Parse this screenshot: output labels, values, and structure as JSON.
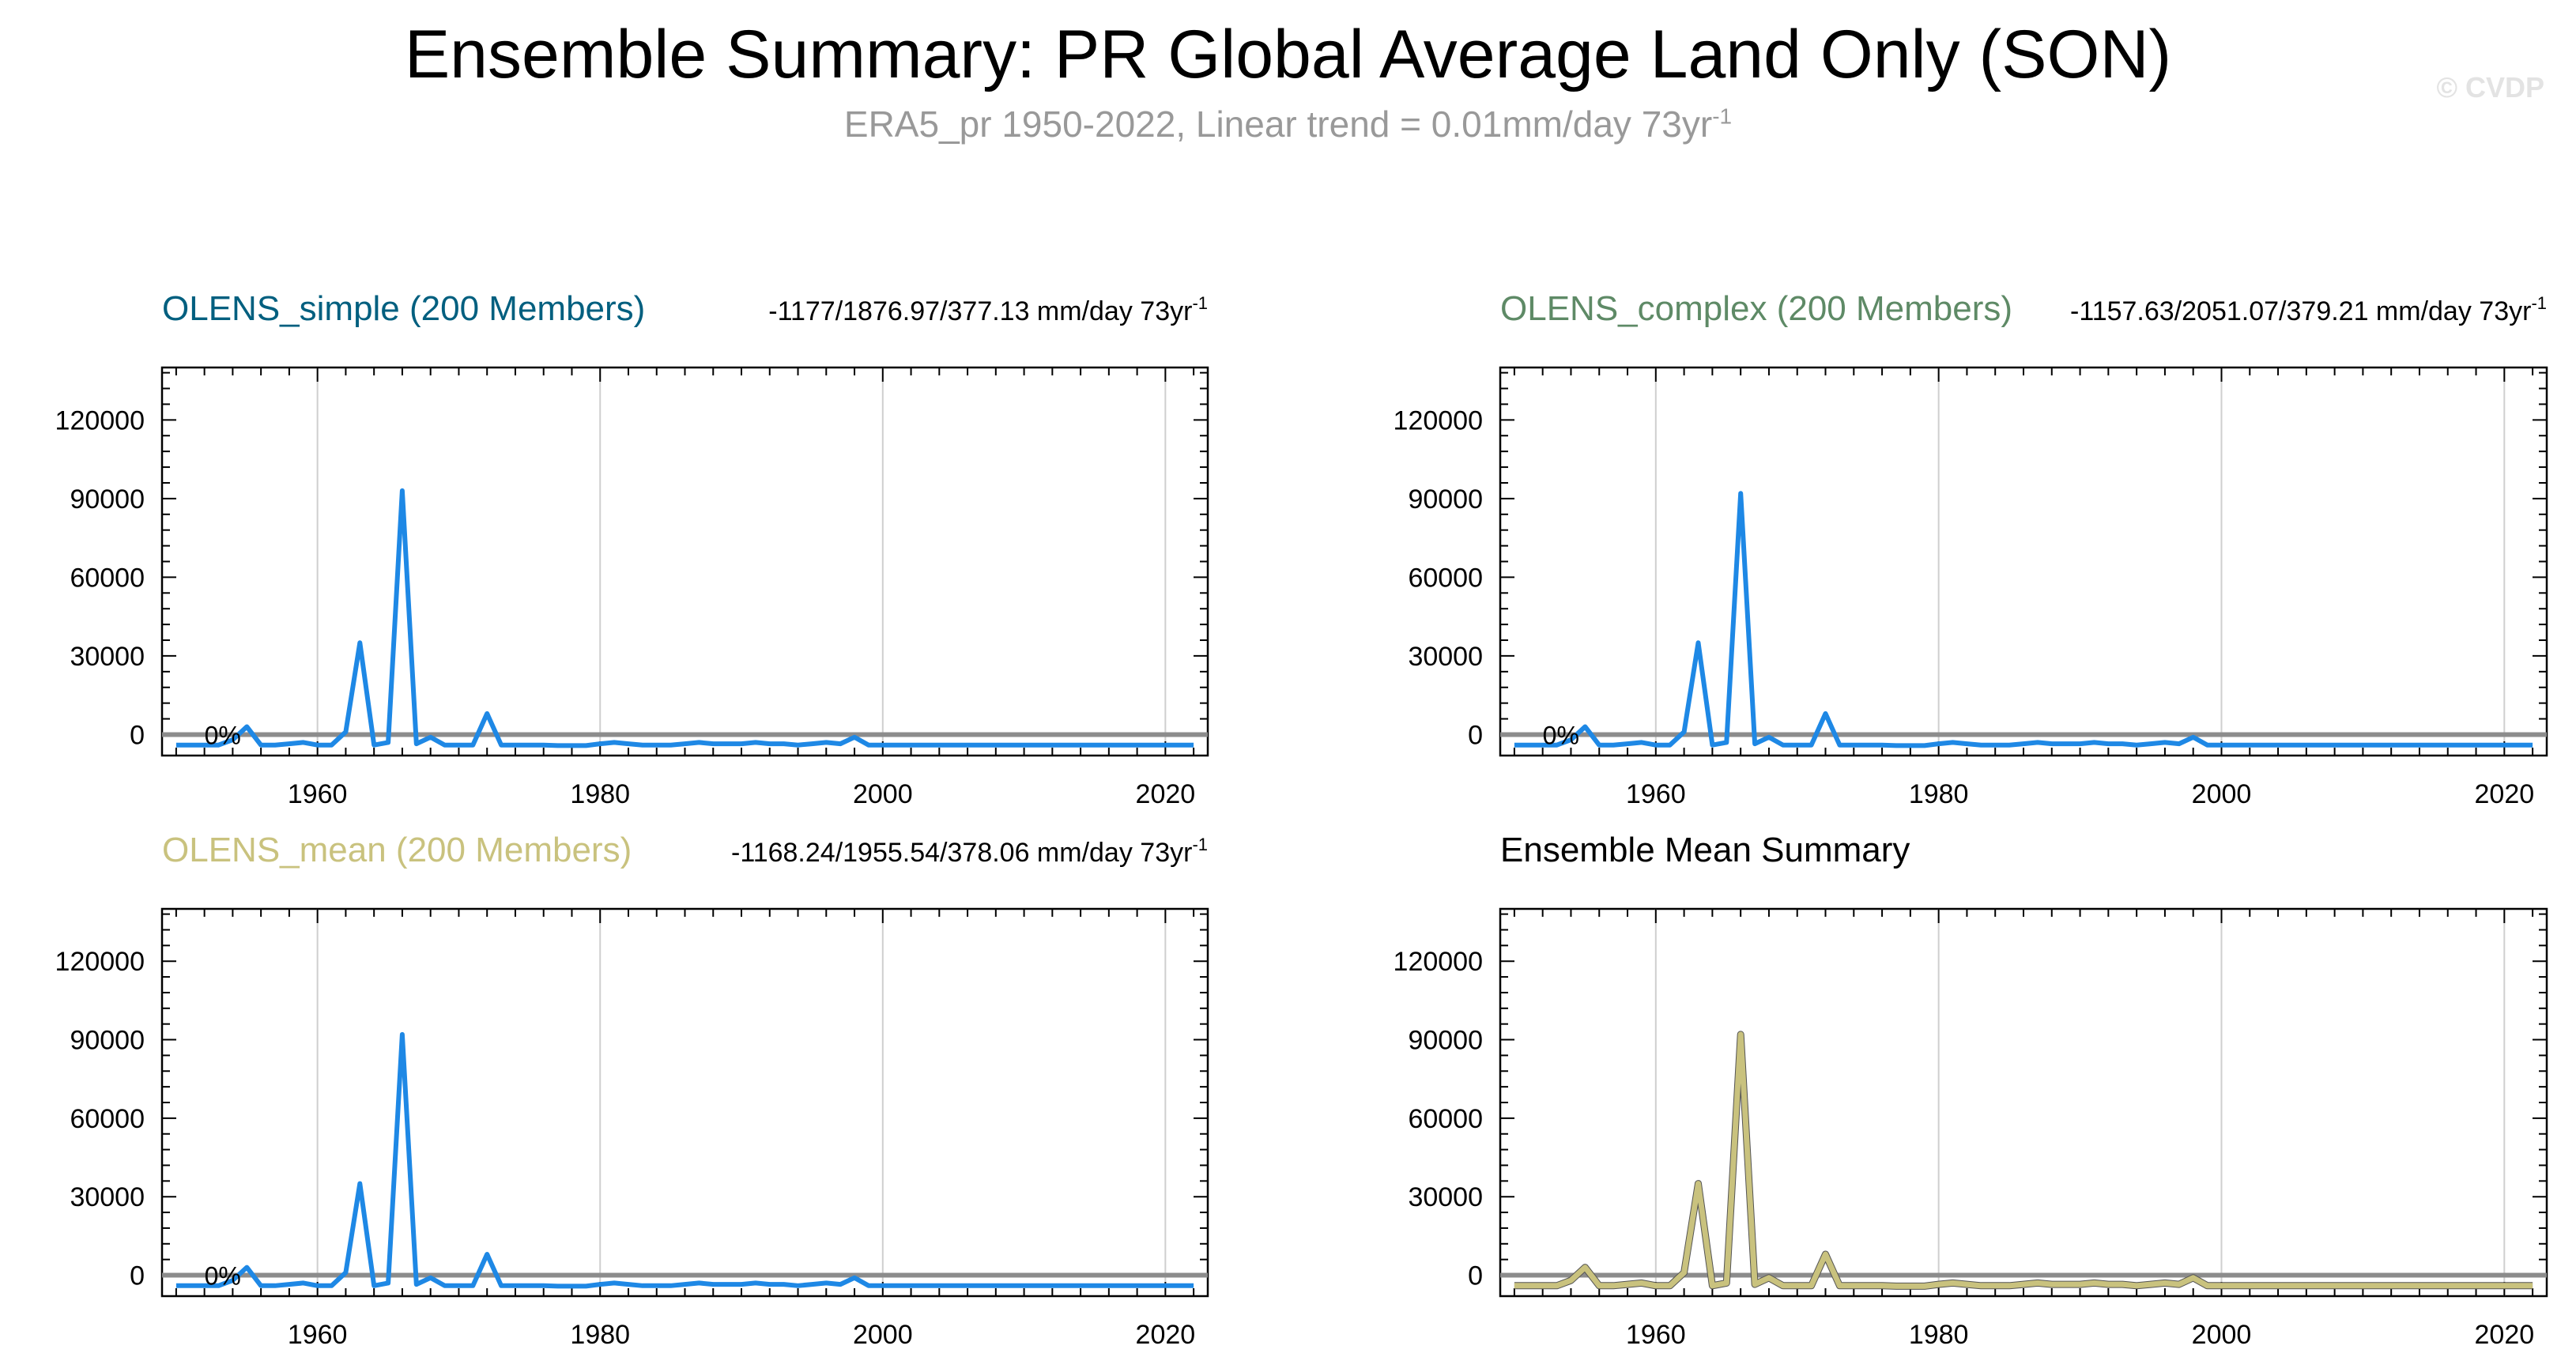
{
  "title": "Ensemble Summary: PR Global Average Land Only (SON)",
  "subtitle": {
    "text": "ERA5_pr 1950-2022, Linear trend = 0.01mm/day 73yr",
    "superscript": "-1"
  },
  "watermark": "© CVDP",
  "colors": {
    "simple": "#005f7f",
    "complex": "#5e8a66",
    "mean": "#c9c27e",
    "observed_line": "#1e88e5",
    "zero_line": "#8c8c8c"
  },
  "chart_data": [
    {
      "type": "line",
      "title": "OLENS_simple (200 Members)",
      "stats": "-1177/1876.97/377.13 mm/day 73yr",
      "stats_superscript": "-1",
      "percent_label": "0%",
      "xlim": [
        1949,
        2023
      ],
      "ylim": [
        -8000,
        140000
      ],
      "xticks": [
        1960,
        1980,
        2000,
        2020
      ],
      "yticks": [
        0,
        30000,
        60000,
        90000,
        120000
      ],
      "x": [
        1950,
        1951,
        1952,
        1953,
        1954,
        1955,
        1956,
        1957,
        1958,
        1959,
        1960,
        1961,
        1962,
        1963,
        1964,
        1965,
        1966,
        1967,
        1968,
        1969,
        1970,
        1971,
        1972,
        1973,
        1974,
        1975,
        1976,
        1977,
        1978,
        1979,
        1980,
        1981,
        1982,
        1983,
        1984,
        1985,
        1986,
        1987,
        1988,
        1989,
        1990,
        1991,
        1992,
        1993,
        1994,
        1995,
        1996,
        1997,
        1998,
        1999,
        2000,
        2001,
        2002,
        2003,
        2004,
        2005,
        2006,
        2007,
        2008,
        2009,
        2010,
        2011,
        2012,
        2013,
        2014,
        2015,
        2016,
        2017,
        2018,
        2019,
        2020,
        2021,
        2022
      ],
      "series": [
        {
          "values": [
            -4000,
            -4000,
            -4000,
            -4000,
            -2000,
            3000,
            -4000,
            -4000,
            -3500,
            -3000,
            -4000,
            -4000,
            1000,
            35000,
            -4000,
            -3000,
            93000,
            -3500,
            -1000,
            -4000,
            -4000,
            -4000,
            8000,
            -4000,
            -4000,
            -4000,
            -4000,
            -4200,
            -4200,
            -4200,
            -3500,
            -3000,
            -3500,
            -4000,
            -4000,
            -4000,
            -3500,
            -3000,
            -3500,
            -3500,
            -3500,
            -3000,
            -3500,
            -3500,
            -4000,
            -3500,
            -3000,
            -3500,
            -1000,
            -4000,
            -4000,
            -4000,
            -4000,
            -4000,
            -4000,
            -4000,
            -4000,
            -4000,
            -4000,
            -4000,
            -4000,
            -4000,
            -4000,
            -4000,
            -4000,
            -4000,
            -4000,
            -4000,
            -4000,
            -4000,
            -4000,
            -4000,
            -4000
          ]
        }
      ]
    },
    {
      "type": "line",
      "title": "OLENS_complex (200 Members)",
      "stats": "-1157.63/2051.07/379.21 mm/day 73yr",
      "stats_superscript": "-1",
      "percent_label": "0%",
      "xlim": [
        1949,
        2023
      ],
      "ylim": [
        -8000,
        140000
      ],
      "xticks": [
        1960,
        1980,
        2000,
        2020
      ],
      "yticks": [
        0,
        30000,
        60000,
        90000,
        120000
      ],
      "x": [
        1950,
        1951,
        1952,
        1953,
        1954,
        1955,
        1956,
        1957,
        1958,
        1959,
        1960,
        1961,
        1962,
        1963,
        1964,
        1965,
        1966,
        1967,
        1968,
        1969,
        1970,
        1971,
        1972,
        1973,
        1974,
        1975,
        1976,
        1977,
        1978,
        1979,
        1980,
        1981,
        1982,
        1983,
        1984,
        1985,
        1986,
        1987,
        1988,
        1989,
        1990,
        1991,
        1992,
        1993,
        1994,
        1995,
        1996,
        1997,
        1998,
        1999,
        2000,
        2001,
        2002,
        2003,
        2004,
        2005,
        2006,
        2007,
        2008,
        2009,
        2010,
        2011,
        2012,
        2013,
        2014,
        2015,
        2016,
        2017,
        2018,
        2019,
        2020,
        2021,
        2022
      ],
      "series": [
        {
          "values": [
            -4000,
            -4000,
            -4000,
            -4000,
            -2000,
            3000,
            -4000,
            -4000,
            -3500,
            -3000,
            -4000,
            -4000,
            1000,
            35000,
            -4000,
            -3000,
            92000,
            -3500,
            -1000,
            -4000,
            -4000,
            -4000,
            8000,
            -4000,
            -4000,
            -4000,
            -4000,
            -4200,
            -4200,
            -4200,
            -3500,
            -3000,
            -3500,
            -4000,
            -4000,
            -4000,
            -3500,
            -3000,
            -3500,
            -3500,
            -3500,
            -3000,
            -3500,
            -3500,
            -4000,
            -3500,
            -3000,
            -3500,
            -1000,
            -4000,
            -4000,
            -4000,
            -4000,
            -4000,
            -4000,
            -4000,
            -4000,
            -4000,
            -4000,
            -4000,
            -4000,
            -4000,
            -4000,
            -4000,
            -4000,
            -4000,
            -4000,
            -4000,
            -4000,
            -4000,
            -4000,
            -4000,
            -4000
          ]
        }
      ]
    },
    {
      "type": "line",
      "title": "OLENS_mean (200 Members)",
      "stats": "-1168.24/1955.54/378.06 mm/day 73yr",
      "stats_superscript": "-1",
      "percent_label": "0%",
      "xlim": [
        1949,
        2023
      ],
      "ylim": [
        -8000,
        140000
      ],
      "xticks": [
        1960,
        1980,
        2000,
        2020
      ],
      "yticks": [
        0,
        30000,
        60000,
        90000,
        120000
      ],
      "x": [
        1950,
        1951,
        1952,
        1953,
        1954,
        1955,
        1956,
        1957,
        1958,
        1959,
        1960,
        1961,
        1962,
        1963,
        1964,
        1965,
        1966,
        1967,
        1968,
        1969,
        1970,
        1971,
        1972,
        1973,
        1974,
        1975,
        1976,
        1977,
        1978,
        1979,
        1980,
        1981,
        1982,
        1983,
        1984,
        1985,
        1986,
        1987,
        1988,
        1989,
        1990,
        1991,
        1992,
        1993,
        1994,
        1995,
        1996,
        1997,
        1998,
        1999,
        2000,
        2001,
        2002,
        2003,
        2004,
        2005,
        2006,
        2007,
        2008,
        2009,
        2010,
        2011,
        2012,
        2013,
        2014,
        2015,
        2016,
        2017,
        2018,
        2019,
        2020,
        2021,
        2022
      ],
      "series": [
        {
          "values": [
            -4000,
            -4000,
            -4000,
            -4000,
            -2000,
            3000,
            -4000,
            -4000,
            -3500,
            -3000,
            -4000,
            -4000,
            1000,
            35000,
            -4000,
            -3000,
            92000,
            -3500,
            -1000,
            -4000,
            -4000,
            -4000,
            8000,
            -4000,
            -4000,
            -4000,
            -4000,
            -4200,
            -4200,
            -4200,
            -3500,
            -3000,
            -3500,
            -4000,
            -4000,
            -4000,
            -3500,
            -3000,
            -3500,
            -3500,
            -3500,
            -3000,
            -3500,
            -3500,
            -4000,
            -3500,
            -3000,
            -3500,
            -1000,
            -4000,
            -4000,
            -4000,
            -4000,
            -4000,
            -4000,
            -4000,
            -4000,
            -4000,
            -4000,
            -4000,
            -4000,
            -4000,
            -4000,
            -4000,
            -4000,
            -4000,
            -4000,
            -4000,
            -4000,
            -4000,
            -4000,
            -4000,
            -4000
          ]
        }
      ]
    },
    {
      "type": "line",
      "title": "Ensemble Mean Summary",
      "stats": "",
      "stats_superscript": "",
      "percent_label": "",
      "xlim": [
        1949,
        2023
      ],
      "ylim": [
        -8000,
        140000
      ],
      "xticks": [
        1960,
        1980,
        2000,
        2020
      ],
      "yticks": [
        0,
        30000,
        60000,
        90000,
        120000
      ],
      "x": [
        1950,
        1951,
        1952,
        1953,
        1954,
        1955,
        1956,
        1957,
        1958,
        1959,
        1960,
        1961,
        1962,
        1963,
        1964,
        1965,
        1966,
        1967,
        1968,
        1969,
        1970,
        1971,
        1972,
        1973,
        1974,
        1975,
        1976,
        1977,
        1978,
        1979,
        1980,
        1981,
        1982,
        1983,
        1984,
        1985,
        1986,
        1987,
        1988,
        1989,
        1990,
        1991,
        1992,
        1993,
        1994,
        1995,
        1996,
        1997,
        1998,
        1999,
        2000,
        2001,
        2002,
        2003,
        2004,
        2005,
        2006,
        2007,
        2008,
        2009,
        2010,
        2011,
        2012,
        2013,
        2014,
        2015,
        2016,
        2017,
        2018,
        2019,
        2020,
        2021,
        2022
      ],
      "series": [
        {
          "values": [
            -4000,
            -4000,
            -4000,
            -4000,
            -2000,
            3000,
            -4000,
            -4000,
            -3500,
            -3000,
            -4000,
            -4000,
            1000,
            35000,
            -4000,
            -3000,
            92000,
            -3500,
            -1000,
            -4000,
            -4000,
            -4000,
            8000,
            -4000,
            -4000,
            -4000,
            -4000,
            -4200,
            -4200,
            -4200,
            -3500,
            -3000,
            -3500,
            -4000,
            -4000,
            -4000,
            -3500,
            -3000,
            -3500,
            -3500,
            -3500,
            -3000,
            -3500,
            -3500,
            -4000,
            -3500,
            -3000,
            -3500,
            -1000,
            -4000,
            -4000,
            -4000,
            -4000,
            -4000,
            -4000,
            -4000,
            -4000,
            -4000,
            -4000,
            -4000,
            -4000,
            -4000,
            -4000,
            -4000,
            -4000,
            -4000,
            -4000,
            -4000,
            -4000,
            -4000,
            -4000,
            -4000,
            -4000
          ]
        }
      ]
    }
  ]
}
